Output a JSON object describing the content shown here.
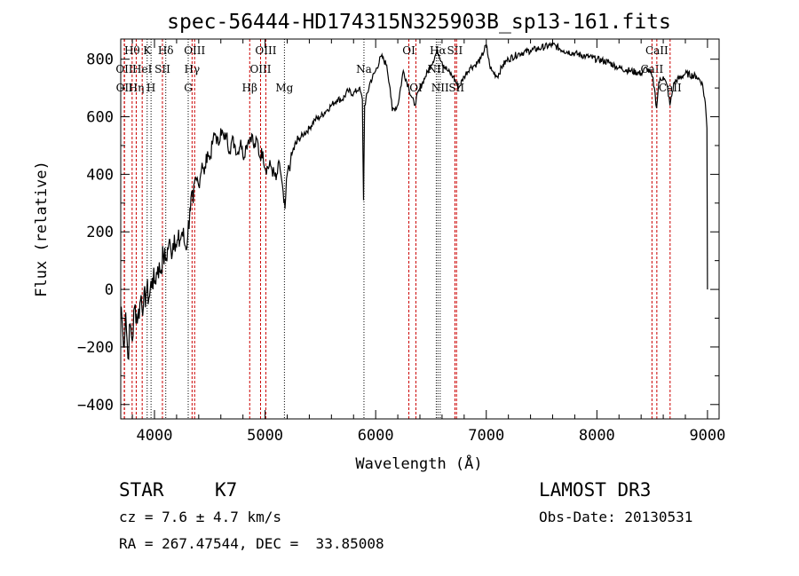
{
  "chart_data": {
    "type": "line",
    "title": "spec-56444-HD174315N325903B_sp13-161.fits",
    "xlabel": "Wavelength (Å)",
    "ylabel": "Flux (relative)",
    "xlim": [
      3695,
      9105
    ],
    "ylim": [
      -450,
      870
    ],
    "xticks": [
      4000,
      5000,
      6000,
      7000,
      8000,
      9000
    ],
    "yticks": [
      -400,
      -200,
      0,
      200,
      400,
      600,
      800
    ],
    "grid": false,
    "series": [
      {
        "name": "spectrum",
        "x": [
          3700,
          3720,
          3740,
          3760,
          3780,
          3800,
          3820,
          3850,
          3880,
          3900,
          3930,
          3950,
          3980,
          4000,
          4030,
          4050,
          4080,
          4100,
          4130,
          4150,
          4180,
          4200,
          4230,
          4250,
          4280,
          4300,
          4320,
          4330,
          4350,
          4380,
          4400,
          4430,
          4450,
          4480,
          4500,
          4530,
          4550,
          4580,
          4600,
          4630,
          4650,
          4680,
          4700,
          4730,
          4750,
          4780,
          4800,
          4830,
          4850,
          4880,
          4900,
          4930,
          4950,
          4980,
          5000,
          5050,
          5100,
          5130,
          5150,
          5170,
          5180,
          5200,
          5230,
          5250,
          5300,
          5350,
          5400,
          5450,
          5500,
          5550,
          5600,
          5650,
          5700,
          5750,
          5800,
          5850,
          5880,
          5890,
          5900,
          5950,
          6000,
          6050,
          6100,
          6130,
          6150,
          6200,
          6250,
          6300,
          6350,
          6400,
          6450,
          6500,
          6560,
          6600,
          6650,
          6700,
          6750,
          6800,
          6850,
          6900,
          6950,
          7000,
          7030,
          7050,
          7100,
          7150,
          7200,
          7300,
          7400,
          7500,
          7600,
          7700,
          7800,
          7900,
          8000,
          8100,
          8200,
          8300,
          8400,
          8450,
          8500,
          8520,
          8540,
          8560,
          8600,
          8640,
          8660,
          8700,
          8800,
          8900,
          8950,
          8980,
          8995,
          9000
        ],
        "y": [
          -60,
          -200,
          -80,
          -240,
          -120,
          -180,
          -60,
          -100,
          -20,
          -60,
          0,
          -30,
          40,
          20,
          80,
          60,
          120,
          100,
          160,
          130,
          190,
          150,
          170,
          200,
          150,
          180,
          280,
          320,
          300,
          380,
          360,
          440,
          400,
          480,
          450,
          520,
          540,
          500,
          560,
          520,
          540,
          480,
          520,
          500,
          470,
          520,
          460,
          500,
          520,
          540,
          490,
          520,
          460,
          480,
          420,
          430,
          380,
          440,
          380,
          300,
          280,
          400,
          440,
          480,
          520,
          540,
          560,
          590,
          600,
          620,
          640,
          660,
          660,
          690,
          680,
          700,
          660,
          310,
          640,
          720,
          760,
          810,
          780,
          700,
          620,
          640,
          760,
          700,
          640,
          700,
          740,
          780,
          830,
          790,
          760,
          740,
          700,
          740,
          770,
          780,
          800,
          850,
          780,
          760,
          740,
          780,
          800,
          820,
          830,
          840,
          850,
          830,
          820,
          810,
          800,
          790,
          770,
          760,
          750,
          770,
          740,
          700,
          630,
          720,
          740,
          700,
          640,
          720,
          750,
          740,
          720,
          650,
          560,
          0
        ]
      }
    ],
    "line_markers": [
      {
        "name": "OII",
        "wl": 3727,
        "row": 1,
        "style": "red"
      },
      {
        "name": "OII",
        "wl": 3729,
        "row": 2,
        "style": "red"
      },
      {
        "name": "Hθ",
        "wl": 3798,
        "row": 0,
        "style": "red"
      },
      {
        "name": "Hη",
        "wl": 3835,
        "row": 2,
        "style": "red"
      },
      {
        "name": "HeI",
        "wl": 3889,
        "row": 1,
        "style": "red"
      },
      {
        "name": "K",
        "wl": 3934,
        "row": 0,
        "style": "black"
      },
      {
        "name": "H",
        "wl": 3969,
        "row": 2,
        "style": "black"
      },
      {
        "name": "SII",
        "wl": 4072,
        "row": 1,
        "style": "red"
      },
      {
        "name": "Hδ",
        "wl": 4102,
        "row": 0,
        "style": "black"
      },
      {
        "name": "G",
        "wl": 4305,
        "row": 2,
        "style": "black"
      },
      {
        "name": "Hγ",
        "wl": 4340,
        "row": 1,
        "style": "red"
      },
      {
        "name": "OIII",
        "wl": 4363,
        "row": 0,
        "style": "red"
      },
      {
        "name": "Hβ",
        "wl": 4861,
        "row": 2,
        "style": "red"
      },
      {
        "name": "OIII",
        "wl": 4959,
        "row": 1,
        "style": "red"
      },
      {
        "name": "OIII",
        "wl": 5007,
        "row": 0,
        "style": "red"
      },
      {
        "name": "Mg",
        "wl": 5175,
        "row": 2,
        "style": "black"
      },
      {
        "name": "Na",
        "wl": 5894,
        "row": 1,
        "style": "black"
      },
      {
        "name": "OI",
        "wl": 6300,
        "row": 0,
        "style": "red"
      },
      {
        "name": "OI",
        "wl": 6364,
        "row": 2,
        "style": "red"
      },
      {
        "name": "NII",
        "wl": 6548,
        "row": 1,
        "style": "black"
      },
      {
        "name": "Hα",
        "wl": 6563,
        "row": 0,
        "style": "black"
      },
      {
        "name": "NII",
        "wl": 6583,
        "row": 2,
        "style": "black"
      },
      {
        "name": "SII",
        "wl": 6716,
        "row": 0,
        "style": "red"
      },
      {
        "name": "SII",
        "wl": 6731,
        "row": 2,
        "style": "red"
      },
      {
        "name": "CaII",
        "wl": 8498,
        "row": 1,
        "style": "red"
      },
      {
        "name": "CaII",
        "wl": 8542,
        "row": 0,
        "style": "red"
      },
      {
        "name": "CaII",
        "wl": 8662,
        "row": 2,
        "style": "red"
      }
    ]
  },
  "footer": {
    "class_label": "STAR",
    "subclass": "K7",
    "cz": "cz = 7.6 ± 4.7 km/s",
    "radec": "RA = 267.47544, DEC =  33.85008",
    "survey": "LAMOST DR3",
    "obs_date": "Obs-Date: 20130531"
  },
  "colors": {
    "axis": "#000000",
    "marker_red": "#cc0000",
    "marker_black": "#000000"
  }
}
